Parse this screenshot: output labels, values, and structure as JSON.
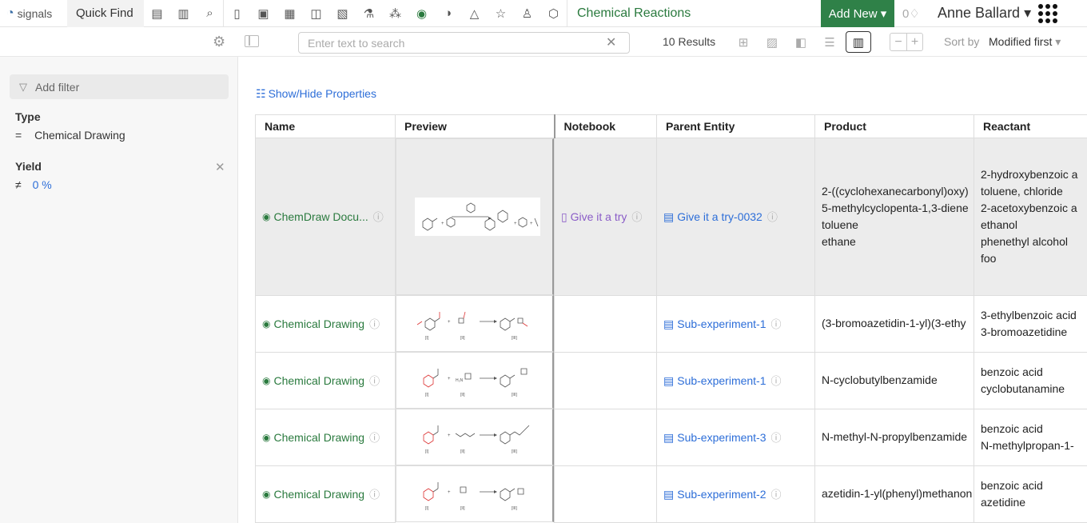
{
  "topbar": {
    "brand": "signals",
    "quick_find": "Quick Find",
    "title": "Chemical Reactions",
    "add_new": "Add New ▾",
    "notifications": "0",
    "user": "Anne Ballard ▾"
  },
  "subbar": {
    "search_placeholder": "Enter text to search",
    "results": "10 Results",
    "sort_label": "Sort by",
    "sort_value": "Modified first"
  },
  "sidebar": {
    "add_filter": "Add filter",
    "filters": [
      {
        "title": "Type",
        "operator": "=",
        "value": "Chemical Drawing"
      },
      {
        "title": "Yield",
        "operator": "≠",
        "value": "0 %"
      }
    ]
  },
  "table": {
    "show_hide": "Show/Hide Properties",
    "columns": [
      "Name",
      "Preview",
      "Notebook",
      "Parent Entity",
      "Product",
      "Reactant"
    ],
    "rows": [
      {
        "name": "ChemDraw Docu...",
        "notebook": "Give it a try",
        "parent": "Give it a try-0032",
        "product": [
          "2-((cyclohexanecarbonyl)oxy)",
          "5-methylcyclopenta-1,3-diene",
          "toluene",
          "ethane"
        ],
        "reactant": [
          "2-hydroxybenzoic a",
          "toluene, chloride",
          "2-acetoxybenzoic a",
          "ethanol",
          "phenethyl alcohol",
          "foo"
        ]
      },
      {
        "name": "Chemical Drawing",
        "notebook": "",
        "parent": "Sub-experiment-1",
        "product": [
          "(3-bromoazetidin-1-yl)(3-ethy"
        ],
        "reactant": [
          "3-ethylbenzoic acid",
          "3-bromoazetidine"
        ]
      },
      {
        "name": "Chemical Drawing",
        "notebook": "",
        "parent": "Sub-experiment-1",
        "product": [
          "N-cyclobutylbenzamide"
        ],
        "reactant": [
          "benzoic acid",
          "cyclobutanamine"
        ]
      },
      {
        "name": "Chemical Drawing",
        "notebook": "",
        "parent": "Sub-experiment-3",
        "product": [
          "N-methyl-N-propylbenzamide"
        ],
        "reactant": [
          "benzoic acid",
          "N-methylpropan-1-"
        ]
      },
      {
        "name": "Chemical Drawing",
        "notebook": "",
        "parent": "Sub-experiment-2",
        "product": [
          "azetidin-1-yl(phenyl)methanon"
        ],
        "reactant": [
          "benzoic acid",
          "azetidine"
        ]
      }
    ]
  }
}
